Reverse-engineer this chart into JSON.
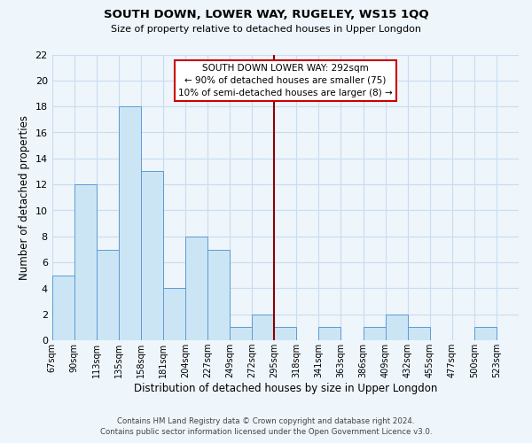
{
  "title": "SOUTH DOWN, LOWER WAY, RUGELEY, WS15 1QQ",
  "subtitle": "Size of property relative to detached houses in Upper Longdon",
  "xlabel": "Distribution of detached houses by size in Upper Longdon",
  "ylabel": "Number of detached properties",
  "footer_line1": "Contains HM Land Registry data © Crown copyright and database right 2024.",
  "footer_line2": "Contains public sector information licensed under the Open Government Licence v3.0.",
  "bin_labels": [
    "67sqm",
    "90sqm",
    "113sqm",
    "135sqm",
    "158sqm",
    "181sqm",
    "204sqm",
    "227sqm",
    "249sqm",
    "272sqm",
    "295sqm",
    "318sqm",
    "341sqm",
    "363sqm",
    "386sqm",
    "409sqm",
    "432sqm",
    "455sqm",
    "477sqm",
    "500sqm",
    "523sqm"
  ],
  "bar_values": [
    5,
    12,
    7,
    18,
    13,
    4,
    8,
    7,
    1,
    2,
    1,
    0,
    1,
    0,
    1,
    2,
    1,
    0,
    0,
    1,
    0
  ],
  "bar_color": "#cce5f5",
  "bar_edge_color": "#5b9bd5",
  "grid_color": "#c8ddf0",
  "background_color": "#eef5fb",
  "vline_x_index": 10,
  "vline_color": "#8b0000",
  "annotation_line1": "SOUTH DOWN LOWER WAY: 292sqm",
  "annotation_line2": "← 90% of detached houses are smaller (75)",
  "annotation_line3": "10% of semi-detached houses are larger (8) →",
  "annotation_box_color": "white",
  "annotation_box_edge_color": "#cc0000",
  "ylim": [
    0,
    22
  ],
  "yticks": [
    0,
    2,
    4,
    6,
    8,
    10,
    12,
    14,
    16,
    18,
    20,
    22
  ]
}
